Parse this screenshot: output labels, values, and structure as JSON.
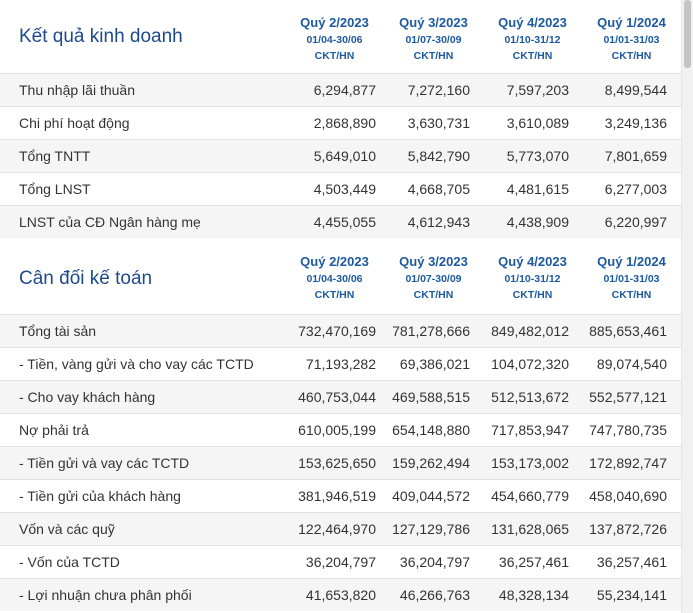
{
  "columns": [
    {
      "quarter": "Quý 2/2023",
      "range": "01/04-30/06",
      "type": "CKT/HN"
    },
    {
      "quarter": "Quý 3/2023",
      "range": "01/07-30/09",
      "type": "CKT/HN"
    },
    {
      "quarter": "Quý 4/2023",
      "range": "01/10-31/12",
      "type": "CKT/HN"
    },
    {
      "quarter": "Quý 1/2024",
      "range": "01/01-31/03",
      "type": "CKT/HN"
    }
  ],
  "business_results": {
    "title": "Kết quả kinh doanh",
    "rows": [
      {
        "label": "Thu nhập lãi thuần",
        "values": [
          "6,294,877",
          "7,272,160",
          "7,597,203",
          "8,499,544"
        ]
      },
      {
        "label": "Chi phí hoạt động",
        "values": [
          "2,868,890",
          "3,630,731",
          "3,610,089",
          "3,249,136"
        ]
      },
      {
        "label": "Tổng TNTT",
        "values": [
          "5,649,010",
          "5,842,790",
          "5,773,070",
          "7,801,659"
        ]
      },
      {
        "label": "Tổng LNST",
        "values": [
          "4,503,449",
          "4,668,705",
          "4,481,615",
          "6,277,003"
        ]
      },
      {
        "label": "LNST của CĐ Ngân hàng mẹ",
        "values": [
          "4,455,055",
          "4,612,943",
          "4,438,909",
          "6,220,997"
        ]
      }
    ]
  },
  "balance_sheet": {
    "title": "Cân đối kế toán",
    "rows": [
      {
        "label": "Tổng tài sản",
        "values": [
          "732,470,169",
          "781,278,666",
          "849,482,012",
          "885,653,461"
        ]
      },
      {
        "label": "- Tiền, vàng gửi và cho vay các TCTD",
        "values": [
          "71,193,282",
          "69,386,021",
          "104,072,320",
          "89,074,540"
        ]
      },
      {
        "label": "- Cho vay khách hàng",
        "values": [
          "460,753,044",
          "469,588,515",
          "512,513,672",
          "552,577,121"
        ]
      },
      {
        "label": "Nợ phải trả",
        "values": [
          "610,005,199",
          "654,148,880",
          "717,853,947",
          "747,780,735"
        ]
      },
      {
        "label": "- Tiền gửi và vay các TCTD",
        "values": [
          "153,625,650",
          "159,262,494",
          "153,173,002",
          "172,892,747"
        ]
      },
      {
        "label": "- Tiền gửi của khách hàng",
        "values": [
          "381,946,519",
          "409,044,572",
          "454,660,779",
          "458,040,690"
        ]
      },
      {
        "label": "Vốn và các quỹ",
        "values": [
          "122,464,970",
          "127,129,786",
          "131,628,065",
          "137,872,726"
        ]
      },
      {
        "label": "- Vốn của TCTD",
        "values": [
          "36,204,797",
          "36,204,797",
          "36,257,461",
          "36,257,461"
        ]
      },
      {
        "label": "- Lợi nhuận chưa phân phối",
        "values": [
          "41,653,820",
          "46,266,763",
          "48,328,134",
          "55,234,141"
        ]
      }
    ]
  }
}
